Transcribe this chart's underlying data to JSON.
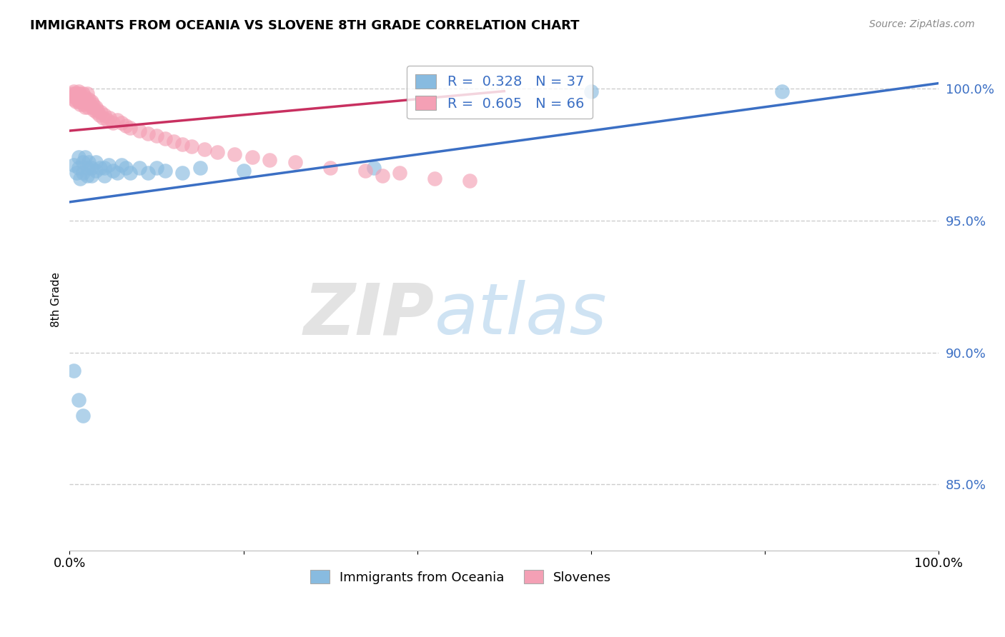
{
  "title": "IMMIGRANTS FROM OCEANIA VS SLOVENE 8TH GRADE CORRELATION CHART",
  "ylabel": "8th Grade",
  "source": "Source: ZipAtlas.com",
  "xlim": [
    0.0,
    1.0
  ],
  "ylim": [
    0.825,
    1.015
  ],
  "yticks": [
    0.85,
    0.9,
    0.95,
    1.0
  ],
  "ytick_labels": [
    "85.0%",
    "90.0%",
    "95.0%",
    "100.0%"
  ],
  "xticks": [
    0.0,
    0.2,
    0.4,
    0.6,
    0.8,
    1.0
  ],
  "xtick_labels": [
    "0.0%",
    "",
    "",
    "",
    "",
    "100.0%"
  ],
  "R_blue": 0.328,
  "N_blue": 37,
  "R_pink": 0.605,
  "N_pink": 66,
  "blue_color": "#88BBE0",
  "pink_color": "#F4A0B5",
  "blue_line_color": "#3B6FC4",
  "pink_line_color": "#C83060",
  "legend_text_color": "#3B6FC4",
  "watermark_zip": "ZIP",
  "watermark_atlas": "atlas",
  "blue_points_x": [
    0.005,
    0.008,
    0.01,
    0.01,
    0.012,
    0.015,
    0.015,
    0.018,
    0.02,
    0.02,
    0.022,
    0.025,
    0.025,
    0.03,
    0.03,
    0.035,
    0.04,
    0.04,
    0.045,
    0.05,
    0.055,
    0.06,
    0.065,
    0.07,
    0.08,
    0.09,
    0.1,
    0.11,
    0.13,
    0.15,
    0.2,
    0.35,
    0.6,
    0.82,
    0.005,
    0.01,
    0.015
  ],
  "blue_points_y": [
    0.971,
    0.968,
    0.974,
    0.97,
    0.966,
    0.972,
    0.968,
    0.974,
    0.97,
    0.967,
    0.972,
    0.97,
    0.967,
    0.972,
    0.969,
    0.97,
    0.97,
    0.967,
    0.971,
    0.969,
    0.968,
    0.971,
    0.97,
    0.968,
    0.97,
    0.968,
    0.97,
    0.969,
    0.968,
    0.97,
    0.969,
    0.97,
    0.999,
    0.999,
    0.893,
    0.882,
    0.876
  ],
  "pink_points_x": [
    0.003,
    0.004,
    0.005,
    0.005,
    0.006,
    0.007,
    0.007,
    0.008,
    0.009,
    0.01,
    0.01,
    0.01,
    0.011,
    0.012,
    0.012,
    0.013,
    0.014,
    0.015,
    0.015,
    0.016,
    0.017,
    0.018,
    0.018,
    0.019,
    0.02,
    0.02,
    0.021,
    0.022,
    0.023,
    0.025,
    0.026,
    0.027,
    0.028,
    0.03,
    0.031,
    0.032,
    0.034,
    0.036,
    0.038,
    0.04,
    0.043,
    0.046,
    0.05,
    0.055,
    0.06,
    0.065,
    0.07,
    0.08,
    0.09,
    0.1,
    0.11,
    0.12,
    0.13,
    0.14,
    0.155,
    0.17,
    0.19,
    0.21,
    0.23,
    0.26,
    0.3,
    0.34,
    0.38,
    0.36,
    0.42,
    0.46
  ],
  "pink_points_y": [
    0.998,
    0.997,
    0.999,
    0.996,
    0.998,
    0.997,
    0.995,
    0.998,
    0.996,
    0.999,
    0.997,
    0.995,
    0.998,
    0.996,
    0.994,
    0.997,
    0.995,
    0.998,
    0.996,
    0.994,
    0.997,
    0.995,
    0.993,
    0.996,
    0.998,
    0.995,
    0.993,
    0.996,
    0.994,
    0.995,
    0.993,
    0.994,
    0.992,
    0.993,
    0.991,
    0.992,
    0.99,
    0.991,
    0.989,
    0.99,
    0.988,
    0.989,
    0.987,
    0.988,
    0.987,
    0.986,
    0.985,
    0.984,
    0.983,
    0.982,
    0.981,
    0.98,
    0.979,
    0.978,
    0.977,
    0.976,
    0.975,
    0.974,
    0.973,
    0.972,
    0.97,
    0.969,
    0.968,
    0.967,
    0.966,
    0.965
  ],
  "blue_line_x": [
    0.0,
    1.0
  ],
  "blue_line_y": [
    0.957,
    1.002
  ],
  "pink_line_x": [
    0.0,
    0.5
  ],
  "pink_line_y": [
    0.984,
    0.999
  ]
}
